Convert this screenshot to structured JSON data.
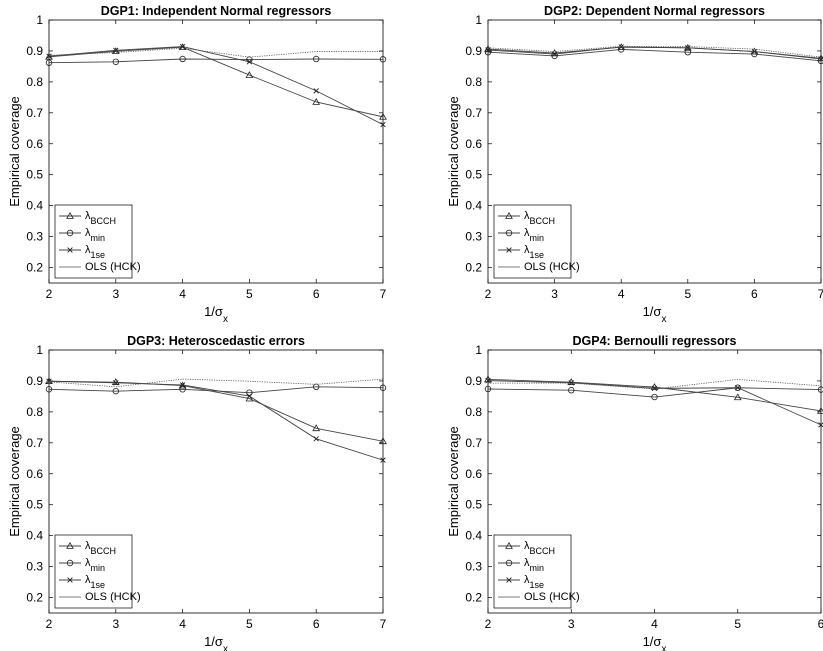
{
  "chart_data": [
    {
      "type": "line",
      "title": "DGP1: Independent Normal regressors",
      "ylabel": "Empirical coverage",
      "xlabel": "1/σx",
      "x": [
        2,
        3,
        4,
        5,
        6,
        7
      ],
      "xlim": [
        2,
        7
      ],
      "ylim": [
        0.15,
        1
      ],
      "yticks": [
        0.2,
        0.3,
        0.4,
        0.5,
        0.6,
        0.7,
        0.8,
        0.9,
        1
      ],
      "grid": false,
      "legend_position": "bottom-left",
      "series": [
        {
          "name": "λBCCH",
          "marker": "triangle",
          "values": [
            0.881,
            0.899,
            0.912,
            0.822,
            0.735,
            0.687
          ]
        },
        {
          "name": "λmin",
          "marker": "circle",
          "values": [
            0.862,
            0.865,
            0.874,
            0.872,
            0.874,
            0.873
          ]
        },
        {
          "name": "λ1se",
          "marker": "cross",
          "values": [
            0.883,
            0.902,
            0.914,
            0.865,
            0.771,
            0.662
          ]
        },
        {
          "name": "OLS (HCK)",
          "marker": "none",
          "values": [
            0.886,
            0.895,
            0.909,
            0.88,
            0.898,
            0.898
          ]
        }
      ]
    },
    {
      "type": "line",
      "title": "DGP2: Dependent Normal regressors",
      "ylabel": "Empirical coverage",
      "xlabel": "1/σx",
      "x": [
        2,
        3,
        4,
        5,
        6,
        7
      ],
      "xlim": [
        2,
        7
      ],
      "ylim": [
        0.15,
        1
      ],
      "yticks": [
        0.2,
        0.3,
        0.4,
        0.5,
        0.6,
        0.7,
        0.8,
        0.9,
        1
      ],
      "grid": false,
      "legend_position": "bottom-left",
      "series": [
        {
          "name": "λBCCH",
          "marker": "triangle",
          "values": [
            0.906,
            0.893,
            0.912,
            0.91,
            0.898,
            0.876
          ]
        },
        {
          "name": "λmin",
          "marker": "circle",
          "values": [
            0.896,
            0.884,
            0.905,
            0.896,
            0.89,
            0.868
          ]
        },
        {
          "name": "λ1se",
          "marker": "cross",
          "values": [
            0.903,
            0.89,
            0.913,
            0.91,
            0.898,
            0.874
          ]
        },
        {
          "name": "OLS (HCK)",
          "marker": "none",
          "values": [
            0.91,
            0.898,
            0.915,
            0.914,
            0.906,
            0.88
          ]
        }
      ]
    },
    {
      "type": "line",
      "title": "DGP3: Heteroscedastic errors",
      "ylabel": "Empirical coverage",
      "xlabel": "1/σx",
      "x": [
        2,
        3,
        4,
        5,
        6,
        7
      ],
      "xlim": [
        2,
        7
      ],
      "ylim": [
        0.15,
        1
      ],
      "yticks": [
        0.2,
        0.3,
        0.4,
        0.5,
        0.6,
        0.7,
        0.8,
        0.9,
        1
      ],
      "grid": false,
      "legend_position": "bottom-left",
      "series": [
        {
          "name": "λBCCH",
          "marker": "triangle",
          "values": [
            0.899,
            0.896,
            0.885,
            0.843,
            0.747,
            0.705
          ]
        },
        {
          "name": "λmin",
          "marker": "circle",
          "values": [
            0.873,
            0.867,
            0.873,
            0.862,
            0.881,
            0.878
          ]
        },
        {
          "name": "λ1se",
          "marker": "cross",
          "values": [
            0.899,
            0.894,
            0.887,
            0.851,
            0.713,
            0.644
          ]
        },
        {
          "name": "OLS (HCK)",
          "marker": "none",
          "values": [
            0.897,
            0.881,
            0.906,
            0.899,
            0.889,
            0.906
          ]
        }
      ]
    },
    {
      "type": "line",
      "title": "DGP4: Bernoulli regressors",
      "ylabel": "Empirical coverage",
      "xlabel": "1/σx",
      "x": [
        2,
        3,
        4,
        5,
        6
      ],
      "xlim": [
        2,
        6
      ],
      "ylim": [
        0.15,
        1
      ],
      "yticks": [
        0.2,
        0.3,
        0.4,
        0.5,
        0.6,
        0.7,
        0.8,
        0.9,
        1
      ],
      "grid": false,
      "legend_position": "bottom-left",
      "series": [
        {
          "name": "λBCCH",
          "marker": "triangle",
          "values": [
            0.905,
            0.896,
            0.88,
            0.847,
            0.803
          ]
        },
        {
          "name": "λmin",
          "marker": "circle",
          "values": [
            0.874,
            0.87,
            0.848,
            0.878,
            0.872
          ]
        },
        {
          "name": "λ1se",
          "marker": "cross",
          "values": [
            0.901,
            0.894,
            0.876,
            0.878,
            0.758
          ]
        },
        {
          "name": "OLS (HCK)",
          "marker": "none",
          "values": [
            0.893,
            0.893,
            0.874,
            0.905,
            0.884
          ]
        }
      ]
    }
  ]
}
